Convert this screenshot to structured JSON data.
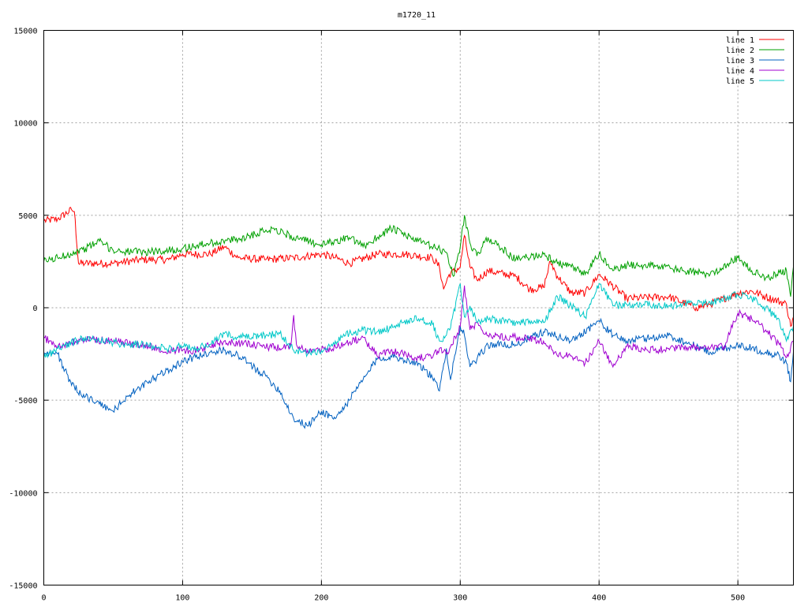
{
  "chart_data": {
    "type": "line",
    "title": "m1720_11",
    "xlim": [
      0,
      540
    ],
    "ylim": [
      -15000,
      15000
    ],
    "x_ticks": [
      0,
      100,
      200,
      300,
      400,
      500
    ],
    "y_ticks": [
      15000,
      10000,
      5000,
      0,
      -5000,
      -10000,
      -15000
    ],
    "grid": true,
    "legend_position": "top-right",
    "series": [
      {
        "name": "line 1",
        "color": "#ff0000",
        "x": [
          0,
          10,
          20,
          22,
          25,
          30,
          50,
          70,
          90,
          100,
          120,
          130,
          140,
          160,
          180,
          200,
          210,
          220,
          240,
          260,
          280,
          285,
          288,
          292,
          300,
          303,
          307,
          312,
          320,
          340,
          350,
          360,
          365,
          370,
          380,
          390,
          400,
          405,
          420,
          450,
          470,
          480,
          500,
          510,
          520,
          535,
          538,
          540
        ],
        "y": [
          4700,
          4800,
          5300,
          5200,
          2400,
          2400,
          2400,
          2600,
          2600,
          2900,
          2900,
          3300,
          2700,
          2600,
          2700,
          2900,
          2700,
          2400,
          2900,
          2900,
          2700,
          2200,
          1000,
          1800,
          2200,
          3900,
          2200,
          1500,
          2000,
          1700,
          1000,
          1100,
          2500,
          1700,
          800,
          800,
          1800,
          1500,
          500,
          600,
          0,
          200,
          800,
          900,
          600,
          200,
          -1000,
          -500
        ]
      },
      {
        "name": "line 2",
        "color": "#00a000",
        "x": [
          0,
          10,
          30,
          40,
          50,
          70,
          90,
          100,
          120,
          140,
          160,
          165,
          180,
          200,
          220,
          230,
          250,
          270,
          290,
          295,
          300,
          303,
          307,
          312,
          320,
          340,
          360,
          370,
          380,
          390,
          400,
          410,
          420,
          440,
          460,
          480,
          500,
          510,
          520,
          530,
          535,
          538,
          540
        ],
        "y": [
          2500,
          2700,
          3200,
          3600,
          3100,
          3000,
          3100,
          3200,
          3500,
          3700,
          4200,
          4300,
          3800,
          3400,
          3800,
          3300,
          4300,
          3600,
          3000,
          1700,
          3300,
          5000,
          3500,
          2800,
          3800,
          2600,
          2900,
          2400,
          2200,
          1800,
          2900,
          2000,
          2300,
          2300,
          2000,
          1800,
          2700,
          2000,
          1600,
          1900,
          2000,
          600,
          2200
        ]
      },
      {
        "name": "line 3",
        "color": "#0060c0",
        "x": [
          0,
          10,
          20,
          30,
          40,
          50,
          60,
          80,
          100,
          120,
          130,
          140,
          160,
          170,
          180,
          190,
          200,
          210,
          220,
          230,
          240,
          250,
          270,
          280,
          285,
          290,
          293,
          296,
          300,
          303,
          307,
          312,
          320,
          340,
          360,
          380,
          400,
          410,
          420,
          450,
          480,
          500,
          520,
          530,
          535,
          538,
          540
        ],
        "y": [
          -2400,
          -2500,
          -4200,
          -4800,
          -5200,
          -5600,
          -4800,
          -3800,
          -2900,
          -2400,
          -2300,
          -2600,
          -3700,
          -4500,
          -6000,
          -6400,
          -5600,
          -6000,
          -5000,
          -3900,
          -2800,
          -2600,
          -3000,
          -3800,
          -4500,
          -2200,
          -3900,
          -2600,
          -1000,
          -1500,
          -3200,
          -2800,
          -2000,
          -2000,
          -1300,
          -1800,
          -700,
          -1500,
          -1800,
          -1500,
          -2400,
          -2000,
          -2400,
          -2600,
          -3000,
          -4000,
          -2400
        ]
      },
      {
        "name": "line 4",
        "color": "#a000d0",
        "x": [
          0,
          10,
          30,
          50,
          70,
          90,
          110,
          130,
          150,
          170,
          178,
          180,
          182,
          190,
          200,
          210,
          220,
          230,
          240,
          250,
          270,
          280,
          285,
          290,
          293,
          300,
          303,
          307,
          312,
          320,
          340,
          360,
          370,
          380,
          390,
          400,
          410,
          420,
          440,
          460,
          480,
          490,
          500,
          510,
          520,
          530,
          535,
          540
        ],
        "y": [
          -1600,
          -2100,
          -1700,
          -1800,
          -2000,
          -2300,
          -2300,
          -1800,
          -2000,
          -2200,
          -2100,
          -400,
          -2000,
          -2300,
          -2300,
          -2100,
          -1900,
          -1600,
          -2600,
          -2300,
          -2700,
          -2700,
          -2200,
          -2500,
          -2100,
          -1000,
          1200,
          -1200,
          -800,
          -1500,
          -1600,
          -1800,
          -2600,
          -2600,
          -3000,
          -1800,
          -3200,
          -2100,
          -2300,
          -2100,
          -2200,
          -2100,
          -300,
          -600,
          -1200,
          -2000,
          -2700,
          -1800
        ]
      },
      {
        "name": "line 5",
        "color": "#00c8c8",
        "x": [
          0,
          10,
          30,
          50,
          70,
          90,
          100,
          110,
          120,
          130,
          140,
          150,
          160,
          170,
          180,
          190,
          200,
          210,
          220,
          230,
          240,
          250,
          260,
          270,
          280,
          285,
          290,
          293,
          300,
          303,
          307,
          312,
          320,
          340,
          360,
          370,
          380,
          390,
          400,
          410,
          420,
          450,
          480,
          500,
          510,
          520,
          530,
          535,
          540
        ],
        "y": [
          -2700,
          -2200,
          -1600,
          -1900,
          -2000,
          -2200,
          -2100,
          -2200,
          -2000,
          -1400,
          -1600,
          -1600,
          -1500,
          -1400,
          -2300,
          -2500,
          -2300,
          -1800,
          -1400,
          -1200,
          -1300,
          -1100,
          -700,
          -600,
          -900,
          -1800,
          -1500,
          -1100,
          1300,
          -500,
          100,
          -800,
          -600,
          -800,
          -800,
          600,
          100,
          -500,
          1300,
          100,
          200,
          100,
          300,
          700,
          500,
          0,
          -700,
          -1800,
          -1000
        ]
      }
    ]
  }
}
